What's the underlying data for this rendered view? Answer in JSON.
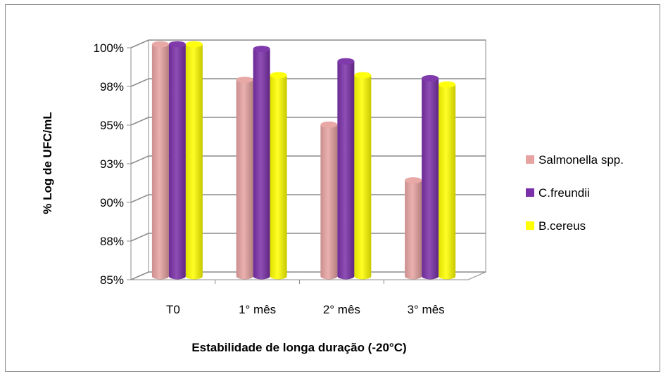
{
  "chart_data": {
    "type": "bar",
    "categories": [
      "T0",
      "1° mês",
      "2° mês",
      "3° mês"
    ],
    "series": [
      {
        "name": "Salmonella spp.",
        "values": [
          100.0,
          97.7,
          94.8,
          91.2
        ]
      },
      {
        "name": "C.freundii",
        "values": [
          100.0,
          99.7,
          98.9,
          97.8
        ]
      },
      {
        "name": "B.cereus",
        "values": [
          100.0,
          98.0,
          98.0,
          97.4
        ]
      }
    ],
    "title": "",
    "xlabel": "Estabilidade de longa duração (-20°C)",
    "ylabel": "% Log de UFC/mL",
    "ylim": [
      85,
      100
    ],
    "yticks": [
      "85%",
      "88%",
      "90%",
      "93%",
      "95%",
      "98%",
      "100%"
    ],
    "grid": true,
    "legend_position": "right",
    "colors": {
      "Salmonella spp.": "#E6A3A1",
      "C.freundii": "#7A30A8",
      "B.cereus": "#FFFF00"
    }
  }
}
